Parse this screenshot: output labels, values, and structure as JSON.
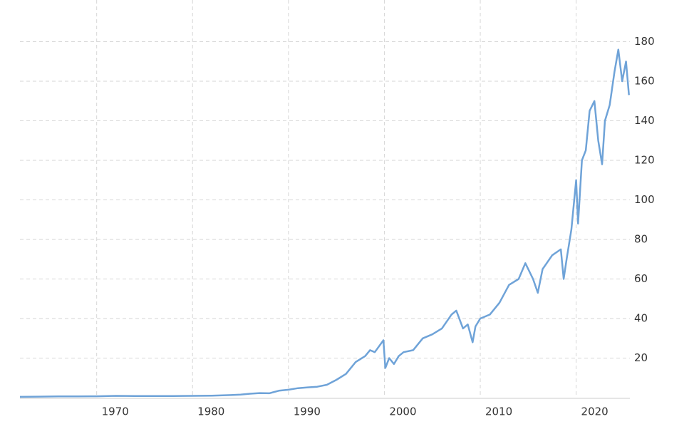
{
  "chart_data": {
    "type": "line",
    "x": [
      1962,
      1964,
      1966,
      1968,
      1970,
      1972,
      1974,
      1976,
      1978,
      1980,
      1982,
      1984,
      1985,
      1986,
      1987,
      1988,
      1989,
      1990,
      1991,
      1992,
      1993,
      1994,
      1995,
      1996,
      1997,
      1998,
      1998.5,
      1999,
      1999.9,
      2000.1,
      2000.5,
      2001,
      2001.5,
      2002,
      2003,
      2004,
      2005,
      2006,
      2007,
      2007.5,
      2008.2,
      2008.7,
      2009.2,
      2009.5,
      2010,
      2011,
      2012,
      2013,
      2014,
      2014.7,
      2015.5,
      2016,
      2016.5,
      2017.5,
      2018.4,
      2018.7,
      2019,
      2019.5,
      2019.8,
      2020,
      2020.2,
      2020.6,
      2021,
      2021.4,
      2021.9,
      2022.3,
      2022.7,
      2023,
      2023.5,
      2024,
      2024.4,
      2024.8,
      2025.2,
      2025.5
    ],
    "series": [
      {
        "color": "#6fa3d8",
        "values": [
          0.4,
          0.5,
          0.6,
          0.6,
          0.7,
          0.9,
          0.8,
          0.8,
          0.8,
          0.9,
          1.0,
          1.3,
          1.5,
          2,
          2.3,
          2.2,
          3.5,
          4,
          4.8,
          5.2,
          5.5,
          6.5,
          9,
          12,
          18,
          21,
          24,
          23,
          29,
          15,
          20,
          17,
          21,
          23,
          24,
          30,
          32,
          35,
          42,
          44,
          35,
          37,
          28,
          36,
          40,
          42,
          48,
          57,
          60,
          68,
          60,
          53,
          65,
          72,
          75,
          60,
          70,
          85,
          100,
          110,
          88,
          120,
          125,
          145,
          150,
          130,
          118,
          140,
          148,
          165,
          176,
          160,
          170,
          153
        ]
      }
    ],
    "xlim": [
      1962,
      2025.6
    ],
    "xticks": [
      1970,
      1980,
      1990,
      2000,
      2010,
      2020
    ],
    "ylim": [
      0,
      200
    ],
    "yticks": [
      20,
      40,
      60,
      80,
      100,
      120,
      140,
      160,
      180
    ],
    "grid": true
  }
}
